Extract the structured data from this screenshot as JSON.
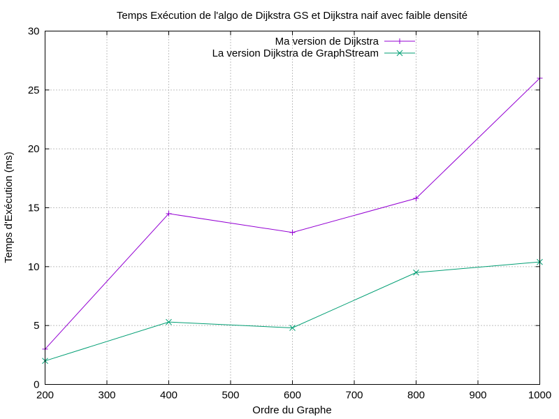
{
  "chart_data": {
    "type": "line",
    "title": "Temps Exécution de l'algo de Dijkstra GS et Dijkstra naif avec faible densité",
    "xlabel": "Ordre du Graphe",
    "ylabel": "Temps d'Exécution (ms)",
    "xlim": [
      200,
      1000
    ],
    "ylim": [
      0,
      30
    ],
    "xticks": [
      200,
      300,
      400,
      500,
      600,
      700,
      800,
      900,
      1000
    ],
    "yticks": [
      0,
      5,
      10,
      15,
      20,
      25,
      30
    ],
    "grid": true,
    "legend_position": "top-right",
    "series": [
      {
        "name": "Ma version de Dijkstra",
        "color": "#9400d3",
        "marker": "plus",
        "x": [
          200,
          400,
          600,
          800,
          1000
        ],
        "y": [
          3.0,
          14.5,
          12.9,
          15.8,
          26.0
        ]
      },
      {
        "name": "La version Dijkstra de GraphStream",
        "color": "#009e73",
        "marker": "cross",
        "x": [
          200,
          400,
          600,
          800,
          1000
        ],
        "y": [
          2.0,
          5.3,
          4.8,
          9.5,
          10.4
        ]
      }
    ]
  }
}
